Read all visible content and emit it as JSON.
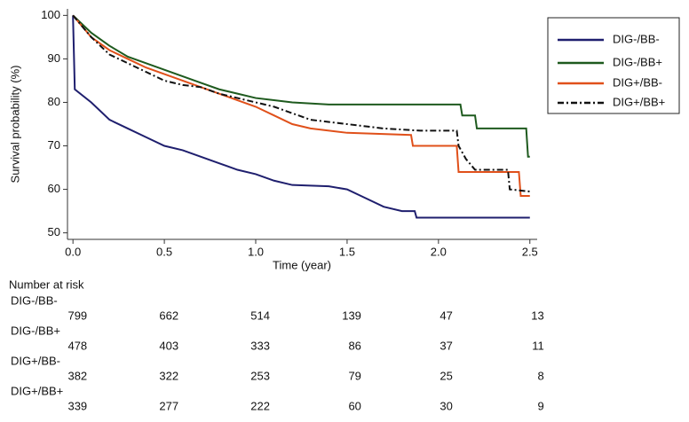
{
  "chart_data": {
    "type": "line",
    "x_label": "Time (year)",
    "y_label": "Survival probability (%)",
    "xlim": [
      -0.03,
      2.54
    ],
    "ylim": [
      48.5,
      101.5
    ],
    "xticks": [
      {
        "value": 0,
        "label": "0.0"
      },
      0.5,
      {
        "value": 1,
        "label": "1.0"
      },
      1.5,
      {
        "value": 2,
        "label": "2.0"
      },
      2.5
    ],
    "yticks": [
      50,
      60,
      70,
      80,
      90,
      100
    ],
    "legend": "upper right",
    "series": [
      {
        "name": "DIG-/BB-",
        "color": "#1f1f6e",
        "dash": "solid",
        "x": [
          0,
          0.01,
          0.1,
          0.2,
          0.3,
          0.4,
          0.5,
          0.6,
          0.7,
          0.8,
          0.9,
          1.0,
          1.1,
          1.2,
          1.4,
          1.5,
          1.6,
          1.7,
          1.8,
          1.87,
          1.88,
          2.5
        ],
        "values": [
          100,
          83,
          80,
          76,
          74,
          72,
          70,
          69,
          67.5,
          66,
          64.5,
          63.5,
          62,
          61,
          60.7,
          60,
          58,
          56,
          55,
          55,
          53.5,
          53.5
        ]
      },
      {
        "name": "DIG-/BB+",
        "color": "#1e5a1e",
        "dash": "solid",
        "x": [
          0,
          0.1,
          0.2,
          0.3,
          0.4,
          0.5,
          0.6,
          0.7,
          0.8,
          0.9,
          1.0,
          1.1,
          1.2,
          1.4,
          2.0,
          2.12,
          2.13,
          2.2,
          2.21,
          2.48,
          2.49,
          2.5
        ],
        "values": [
          100,
          96,
          93,
          90.5,
          89,
          87.5,
          86,
          84.5,
          83,
          82,
          81,
          80.5,
          80,
          79.5,
          79.5,
          79.5,
          77,
          77,
          74,
          74,
          67.5,
          67.5
        ]
      },
      {
        "name": "DIG+/BB-",
        "color": "#e0501a",
        "dash": "solid",
        "x": [
          0,
          0.1,
          0.2,
          0.3,
          0.4,
          0.5,
          0.6,
          0.7,
          0.8,
          0.9,
          1.0,
          1.1,
          1.2,
          1.3,
          1.5,
          1.85,
          1.86,
          2.1,
          2.11,
          2.44,
          2.45,
          2.5
        ],
        "values": [
          100,
          95,
          92,
          90,
          88,
          86.5,
          85,
          83.5,
          82,
          80.5,
          79,
          77,
          75,
          74,
          73,
          72.5,
          70,
          70,
          64,
          64,
          58.5,
          58.5
        ]
      },
      {
        "name": "DIG+/BB+",
        "color": "#111111",
        "dash": "dashdot",
        "x": [
          0,
          0.1,
          0.2,
          0.3,
          0.4,
          0.5,
          0.6,
          0.7,
          0.8,
          0.9,
          1.0,
          1.1,
          1.2,
          1.3,
          1.5,
          1.7,
          1.9,
          2.1,
          2.11,
          2.15,
          2.2,
          2.38,
          2.39,
          2.5
        ],
        "values": [
          100,
          95,
          91,
          89,
          87,
          85,
          84,
          83.5,
          82,
          81,
          80,
          79,
          77.5,
          76,
          75,
          74,
          73.5,
          73.5,
          70,
          67,
          64.5,
          64.5,
          60,
          59.5
        ]
      }
    ],
    "risk_table": {
      "title": "Number at risk",
      "rows": [
        {
          "name": "DIG-/BB-",
          "values": [
            799,
            662,
            514,
            139,
            47,
            13
          ]
        },
        {
          "name": "DIG-/BB+",
          "values": [
            478,
            403,
            333,
            86,
            37,
            11
          ]
        },
        {
          "name": "DIG+/BB-",
          "values": [
            382,
            322,
            253,
            79,
            25,
            8
          ]
        },
        {
          "name": "DIG+/BB+",
          "values": [
            339,
            277,
            222,
            60,
            30,
            9
          ]
        }
      ]
    }
  }
}
